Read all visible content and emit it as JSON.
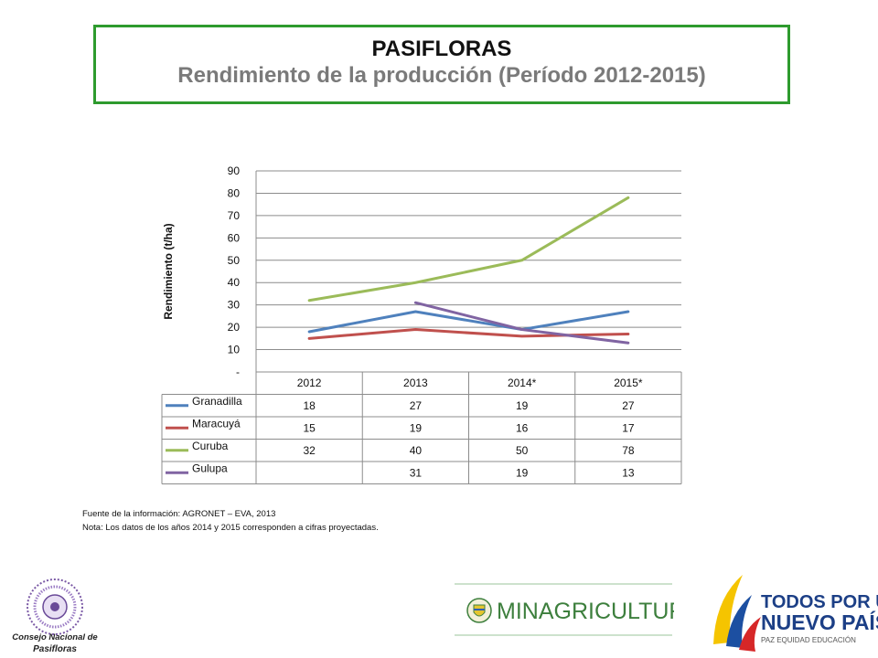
{
  "header": {
    "title": "PASIFLORAS",
    "subtitle": "Rendimiento de la producción (Período 2012-2015)"
  },
  "chart_data": {
    "type": "line",
    "title": "",
    "ylabel": "Rendimiento (t/ha)",
    "xlabel": "",
    "ylim": [
      0,
      90
    ],
    "yticks": [
      0,
      10,
      20,
      30,
      40,
      50,
      60,
      70,
      80,
      90
    ],
    "ytick_labels": [
      "-",
      "10",
      "20",
      "30",
      "40",
      "50",
      "60",
      "70",
      "80",
      "90"
    ],
    "categories": [
      "2012",
      "2013",
      "2014*",
      "2015*"
    ],
    "grid": true,
    "legend": "data-table",
    "series": [
      {
        "name": "Granadilla",
        "color": "#4f81bd",
        "values": [
          18,
          27,
          19,
          27
        ]
      },
      {
        "name": "Maracuyá",
        "color": "#c0504d",
        "values": [
          15,
          19,
          16,
          17
        ]
      },
      {
        "name": "Curuba",
        "color": "#9bbb59",
        "values": [
          32,
          40,
          50,
          78
        ]
      },
      {
        "name": "Gulupa",
        "color": "#8064a2",
        "values": [
          null,
          31,
          19,
          13
        ]
      }
    ]
  },
  "notes": {
    "source": "Fuente de la información: AGRONET – EVA, 2013",
    "note": "Nota: Los datos de los años 2014 y 2015 corresponden a cifras proyectadas."
  },
  "logos": {
    "cnp_line1": "Consejo Nacional de",
    "cnp_line2": "Pasifloras",
    "minagricultura": "MINAGRICULTURA",
    "tpnp_line1": "TODOS POR UN",
    "tpnp_line2": "NUEVO PAÍS",
    "tpnp_line3": "PAZ  EQUIDAD  EDUCACIÓN"
  }
}
